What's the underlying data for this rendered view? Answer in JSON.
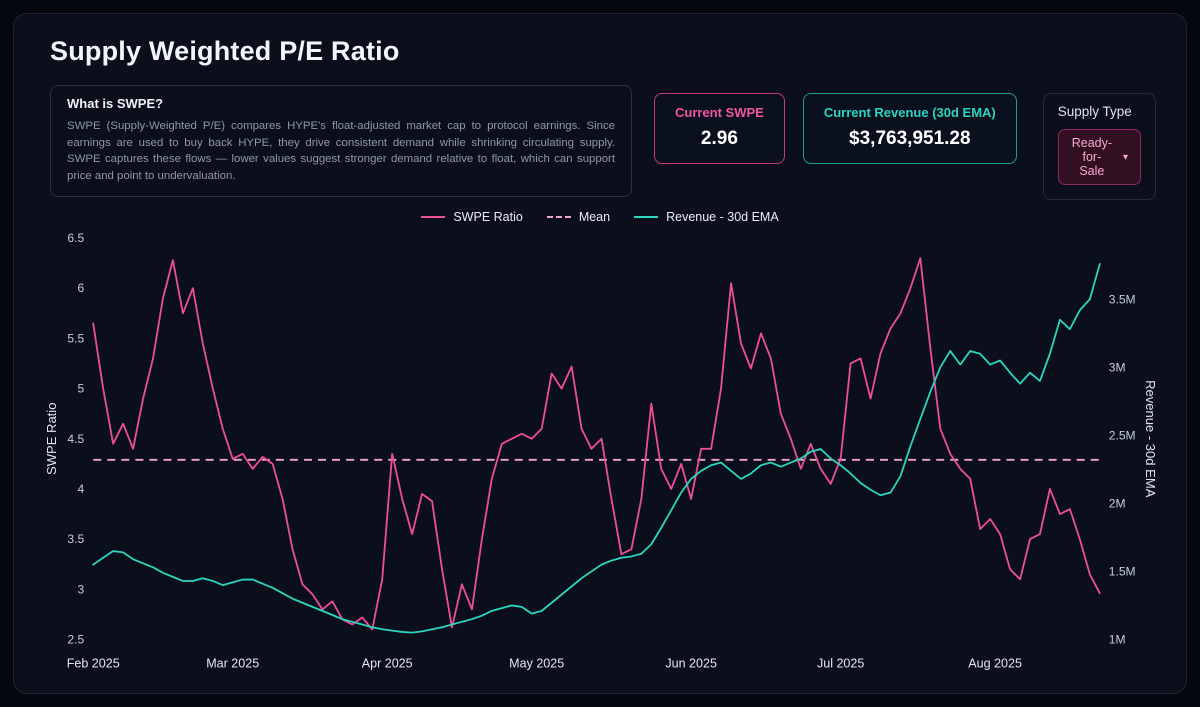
{
  "panel": {
    "title": "Supply Weighted P/E Ratio"
  },
  "info": {
    "heading": "What is SWPE?",
    "body": "SWPE (Supply-Weighted P/E) compares HYPE's float-adjusted market cap to protocol earnings. Since earnings are used to buy back HYPE, they drive consistent demand while shrinking circulating supply. SWPE captures these flows — lower values suggest stronger demand relative to float, which can support price and point to undervaluation."
  },
  "stats": {
    "swpe": {
      "label": "Current SWPE",
      "value": "2.96",
      "accent": "#f0559f"
    },
    "revenue": {
      "label": "Current Revenue (30d EMA)",
      "value": "$3,763,951.28",
      "accent": "#2dd4bf"
    }
  },
  "supply_type": {
    "label": "Supply Type",
    "selected": "Ready-for-Sale",
    "caret": "▾"
  },
  "chart_data": {
    "type": "line",
    "title": "",
    "legend_position": "top-center",
    "grid": false,
    "legend": [
      {
        "label": "SWPE Ratio",
        "color": "#ee4d9b",
        "style": "solid"
      },
      {
        "label": "Mean",
        "color": "#f0a6cc",
        "style": "dashed"
      },
      {
        "label": "Revenue - 30d EMA",
        "color": "#2dd4bf",
        "style": "solid"
      }
    ],
    "x_ticks": [
      "Feb 2025",
      "Mar 2025",
      "Apr 2025",
      "May 2025",
      "Jun 2025",
      "Jul 2025",
      "Aug 2025"
    ],
    "x_tick_days": [
      0,
      28,
      59,
      89,
      120,
      150,
      181
    ],
    "x_domain": [
      0,
      202
    ],
    "left_axis": {
      "label": "SWPE Ratio",
      "ticks": [
        "2.5",
        "3",
        "3.5",
        "4",
        "4.5",
        "5",
        "5.5",
        "6",
        "6.5"
      ],
      "tick_values": [
        2.5,
        3,
        3.5,
        4,
        4.5,
        5,
        5.5,
        6,
        6.5
      ],
      "range": [
        2.5,
        6.5
      ]
    },
    "right_axis": {
      "label": "Revenue - 30d EMA",
      "ticks": [
        "1M",
        "1.5M",
        "2M",
        "2.5M",
        "3M",
        "3.5M"
      ],
      "tick_values": [
        1,
        1.5,
        2,
        2.5,
        3,
        3.5
      ],
      "range": [
        1.0,
        3.95
      ]
    },
    "mean": 4.29,
    "mean_color": "#f0a6cc",
    "x": [
      0,
      2,
      4,
      6,
      8,
      10,
      12,
      14,
      16,
      18,
      20,
      22,
      24,
      26,
      28,
      30,
      32,
      34,
      36,
      38,
      40,
      42,
      44,
      46,
      48,
      50,
      52,
      54,
      56,
      58,
      60,
      62,
      64,
      66,
      68,
      70,
      72,
      74,
      76,
      78,
      80,
      82,
      84,
      86,
      88,
      90,
      92,
      94,
      96,
      98,
      100,
      102,
      104,
      106,
      108,
      110,
      112,
      114,
      116,
      118,
      120,
      122,
      124,
      126,
      128,
      130,
      132,
      134,
      136,
      138,
      140,
      142,
      144,
      146,
      148,
      150,
      152,
      154,
      156,
      158,
      160,
      162,
      164,
      166,
      168,
      170,
      172,
      174,
      176,
      178,
      180,
      182,
      184,
      186,
      188,
      190,
      192,
      194,
      196,
      198,
      200,
      202
    ],
    "series": [
      {
        "name": "SWPE Ratio",
        "data_name": "swpe-line",
        "axis": "left",
        "color": "#ee4d9b",
        "values": [
          5.65,
          5.0,
          4.45,
          4.65,
          4.4,
          4.9,
          5.3,
          5.9,
          6.28,
          5.75,
          6.0,
          5.45,
          5.0,
          4.6,
          4.3,
          4.35,
          4.2,
          4.32,
          4.25,
          3.9,
          3.4,
          3.05,
          2.95,
          2.8,
          2.88,
          2.7,
          2.65,
          2.72,
          2.6,
          3.1,
          4.35,
          3.9,
          3.55,
          3.95,
          3.88,
          3.2,
          2.62,
          3.05,
          2.8,
          3.5,
          4.1,
          4.45,
          4.5,
          4.55,
          4.5,
          4.6,
          5.15,
          5.0,
          5.22,
          4.6,
          4.4,
          4.5,
          3.9,
          3.35,
          3.4,
          3.9,
          4.85,
          4.2,
          4.0,
          4.25,
          3.9,
          4.4,
          4.4,
          5.0,
          6.05,
          5.45,
          5.2,
          5.55,
          5.3,
          4.75,
          4.5,
          4.2,
          4.45,
          4.2,
          4.05,
          4.3,
          5.25,
          5.3,
          4.9,
          5.35,
          5.6,
          5.75,
          6.0,
          6.3,
          5.4,
          4.6,
          4.35,
          4.2,
          4.1,
          3.6,
          3.7,
          3.55,
          3.2,
          3.1,
          3.5,
          3.55,
          4.0,
          3.75,
          3.8,
          3.5,
          3.15,
          2.96
        ]
      },
      {
        "name": "Revenue - 30d EMA",
        "data_name": "revenue-line",
        "axis": "right",
        "color": "#2dd4bf",
        "values": [
          1.55,
          1.6,
          1.65,
          1.64,
          1.59,
          1.56,
          1.53,
          1.49,
          1.46,
          1.43,
          1.43,
          1.45,
          1.43,
          1.4,
          1.42,
          1.44,
          1.44,
          1.41,
          1.38,
          1.34,
          1.3,
          1.27,
          1.24,
          1.21,
          1.18,
          1.15,
          1.13,
          1.11,
          1.09,
          1.075,
          1.065,
          1.055,
          1.05,
          1.06,
          1.075,
          1.09,
          1.11,
          1.13,
          1.15,
          1.175,
          1.21,
          1.23,
          1.25,
          1.24,
          1.19,
          1.21,
          1.27,
          1.33,
          1.39,
          1.45,
          1.5,
          1.55,
          1.58,
          1.6,
          1.61,
          1.63,
          1.7,
          1.82,
          1.95,
          2.08,
          2.18,
          2.24,
          2.28,
          2.3,
          2.24,
          2.18,
          2.22,
          2.28,
          2.3,
          2.27,
          2.3,
          2.33,
          2.38,
          2.4,
          2.33,
          2.28,
          2.22,
          2.15,
          2.1,
          2.06,
          2.08,
          2.2,
          2.42,
          2.62,
          2.82,
          3.0,
          3.12,
          3.02,
          3.12,
          3.1,
          3.02,
          3.05,
          2.96,
          2.88,
          2.96,
          2.9,
          3.1,
          3.35,
          3.28,
          3.42,
          3.5,
          3.76
        ]
      }
    ]
  }
}
